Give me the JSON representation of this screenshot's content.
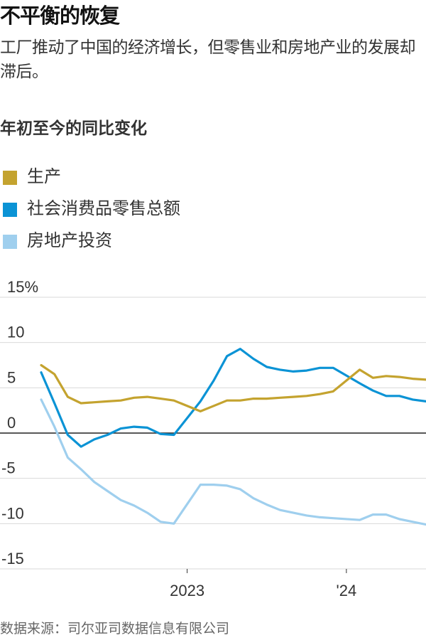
{
  "title": "不平衡的恢复",
  "subtitle": "工厂推动了中国的经济增长，但零售业和房地产业的发展却滞后。",
  "source": "数据来源：司尔亚司数据信息有限公司",
  "colors": {
    "production": "#c4a32f",
    "retail": "#0b93d5",
    "property": "#9fcfee",
    "grid": "#d9d9d9",
    "zero": "#222222"
  },
  "chart_data": {
    "type": "line",
    "title": "年初至今的同比变化",
    "xlabel": "",
    "ylabel": "",
    "ylim": [
      -15,
      15
    ],
    "y_ticks": [
      15,
      10,
      5,
      0,
      -5,
      -10,
      -15
    ],
    "y_tick_labels": [
      "15%",
      "10",
      "5",
      "0",
      "-5",
      "-10",
      "-15"
    ],
    "x": [
      "2022-02",
      "2022-03",
      "2022-04",
      "2022-05",
      "2022-06",
      "2022-07",
      "2022-08",
      "2022-09",
      "2022-10",
      "2022-11",
      "2022-12",
      "2023-02",
      "2023-03",
      "2023-04",
      "2023-05",
      "2023-06",
      "2023-07",
      "2023-08",
      "2023-09",
      "2023-10",
      "2023-11",
      "2023-12",
      "2024-02",
      "2024-03",
      "2024-04",
      "2024-05",
      "2024-06",
      "2024-07"
    ],
    "x_ticks": [
      {
        "x": "2023-01",
        "label": "2023"
      },
      {
        "x": "2024-01",
        "label": "'24"
      }
    ],
    "legend_position": "top-left",
    "grid": true,
    "series": [
      {
        "name": "生产",
        "color_key": "production",
        "values": [
          7.5,
          6.5,
          4.0,
          3.3,
          3.4,
          3.5,
          3.6,
          3.9,
          4.0,
          3.8,
          3.6,
          2.4,
          3.0,
          3.6,
          3.6,
          3.8,
          3.8,
          3.9,
          4.0,
          4.1,
          4.3,
          4.6,
          7.0,
          6.1,
          6.3,
          6.2,
          6.0,
          5.9
        ]
      },
      {
        "name": "社会消费品零售总额",
        "color_key": "retail",
        "values": [
          6.7,
          3.3,
          -0.2,
          -1.5,
          -0.7,
          -0.2,
          0.5,
          0.7,
          0.6,
          -0.1,
          -0.2,
          3.5,
          5.8,
          8.5,
          9.3,
          8.2,
          7.3,
          7.0,
          6.8,
          6.9,
          7.2,
          7.2,
          5.5,
          4.7,
          4.1,
          4.1,
          3.7,
          3.5
        ]
      },
      {
        "name": "房地产投资",
        "color_key": "property",
        "values": [
          3.7,
          0.7,
          -2.7,
          -4.0,
          -5.4,
          -6.4,
          -7.4,
          -8.0,
          -8.8,
          -9.8,
          -10.0,
          -5.7,
          -5.7,
          -5.8,
          -6.2,
          -7.2,
          -7.9,
          -8.5,
          -8.8,
          -9.1,
          -9.3,
          -9.4,
          -9.6,
          -9.0,
          -9.0,
          -9.5,
          -9.8,
          -10.1
        ]
      }
    ]
  }
}
